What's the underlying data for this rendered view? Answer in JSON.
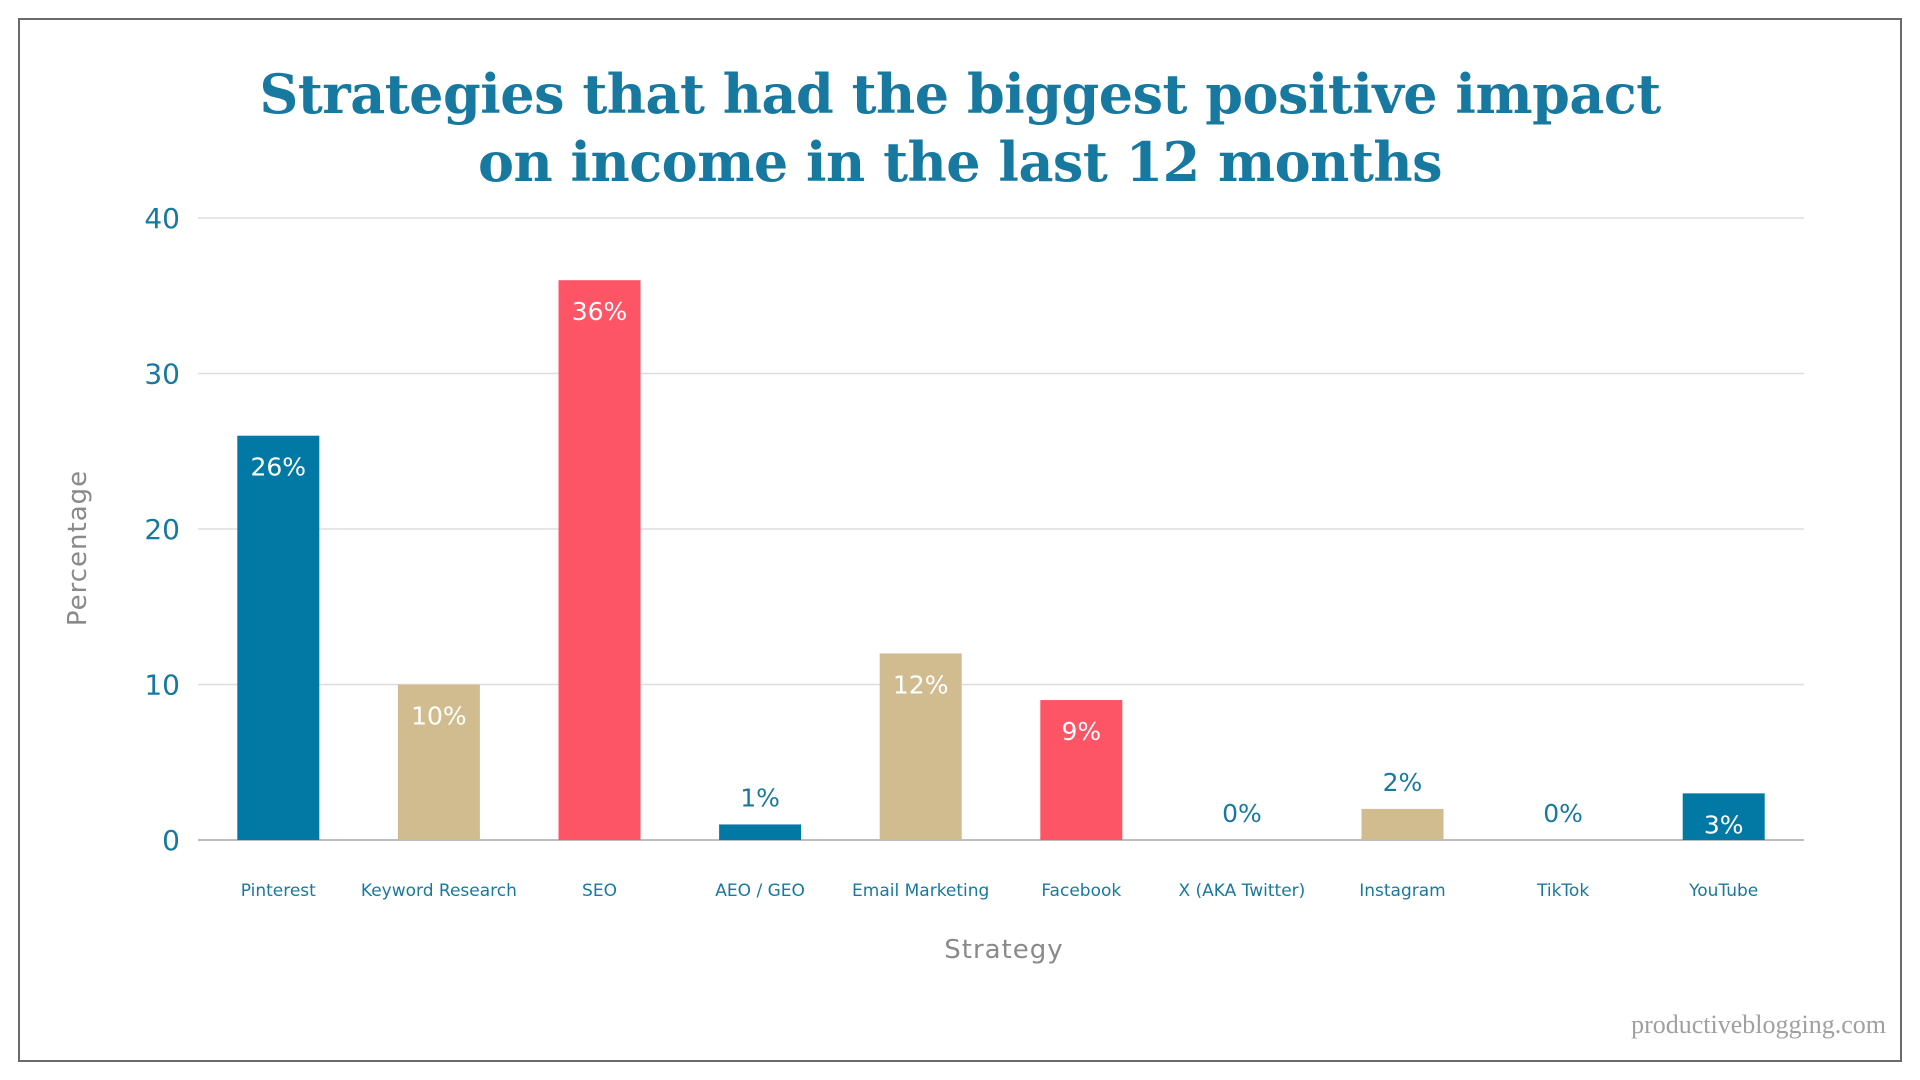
{
  "chart_data": {
    "type": "bar",
    "title": [
      "Strategies that had the biggest positive impact",
      "on income in the last 12 months"
    ],
    "xlabel": "Strategy",
    "ylabel": "Percentage",
    "ylim": [
      0,
      40
    ],
    "yticks": [
      0,
      10,
      20,
      30,
      40
    ],
    "grid": true,
    "categories": [
      "Pinterest",
      "Keyword Research",
      "SEO",
      "AEO / GEO",
      "Email Marketing",
      "Facebook",
      "X (AKA Twitter)",
      "Instagram",
      "TikTok",
      "YouTube"
    ],
    "values": [
      26,
      10,
      36,
      1,
      12,
      9,
      0,
      2,
      0,
      3
    ],
    "labels": [
      "26%",
      "10%",
      "36%",
      "1%",
      "12%",
      "9%",
      "0%",
      "2%",
      "0%",
      "3%"
    ],
    "colors": [
      "#0279a4",
      "#d1bc8f",
      "#fd5566",
      "#0279a4",
      "#d1bc8f",
      "#fd5566",
      "#0279a4",
      "#d1bc8f",
      "#fd5566",
      "#0279a4"
    ]
  },
  "watermark": "productiveblogging.com"
}
